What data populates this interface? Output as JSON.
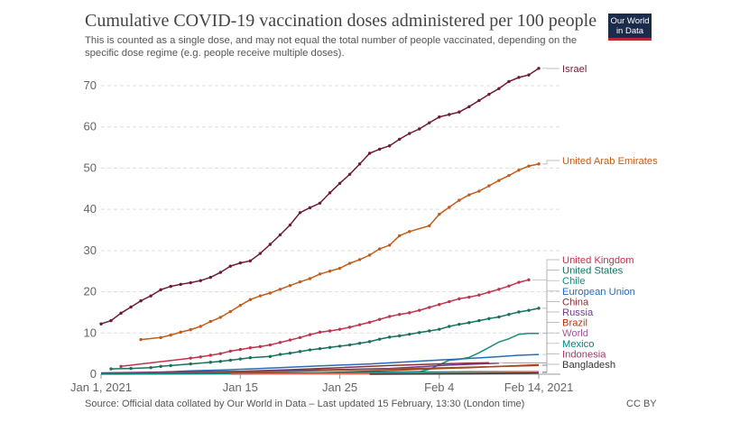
{
  "header": {
    "title": "Cumulative COVID-19 vaccination doses administered per 100 people",
    "subtitle": "This is counted as a single dose, and may not equal the total number of people vaccinated, depending on the specific dose regime (e.g. people receive multiple doses).",
    "logo_line1": "Our World",
    "logo_line2": "in Data"
  },
  "footer": {
    "source": "Source: Official data collated by Our World in Data – Last updated 15 February, 13:30 (London time)",
    "license": "CC BY"
  },
  "chart_data": {
    "type": "line",
    "title": "Cumulative COVID-19 vaccination doses administered per 100 people",
    "x_unit": "date",
    "x_range": [
      "2021-01-01",
      "2021-02-14"
    ],
    "x_ticks": [
      "Jan 1, 2021",
      "Jan 15",
      "Jan 25",
      "Feb 4",
      "Feb 14, 2021"
    ],
    "x_tick_dates": [
      "2021-01-01",
      "2021-01-15",
      "2021-01-25",
      "2021-02-04",
      "2021-02-14"
    ],
    "ylim": [
      0,
      75
    ],
    "y_ticks": [
      0,
      10,
      20,
      30,
      40,
      50,
      60,
      70
    ],
    "grid": "horizontal dashed",
    "legend": "labels at line ends, right",
    "series": [
      {
        "name": "Israel",
        "color": "#6d1a36",
        "points": [
          [
            "2021-01-01",
            12.2
          ],
          [
            "2021-01-02",
            13
          ],
          [
            "2021-01-03",
            14.8
          ],
          [
            "2021-01-04",
            16.3
          ],
          [
            "2021-01-05",
            17.8
          ],
          [
            "2021-01-06",
            19
          ],
          [
            "2021-01-07",
            20.5
          ],
          [
            "2021-01-08",
            21.3
          ],
          [
            "2021-01-09",
            21.8
          ],
          [
            "2021-01-10",
            22.2
          ],
          [
            "2021-01-11",
            22.7
          ],
          [
            "2021-01-12",
            23.5
          ],
          [
            "2021-01-13",
            24.7
          ],
          [
            "2021-01-14",
            26.2
          ],
          [
            "2021-01-15",
            27
          ],
          [
            "2021-01-16",
            27.5
          ],
          [
            "2021-01-17",
            29.3
          ],
          [
            "2021-01-18",
            31.5
          ],
          [
            "2021-01-19",
            33.8
          ],
          [
            "2021-01-20",
            36.2
          ],
          [
            "2021-01-21",
            39.2
          ],
          [
            "2021-01-22",
            40.4
          ],
          [
            "2021-01-23",
            41.5
          ],
          [
            "2021-01-24",
            44
          ],
          [
            "2021-01-25",
            46.3
          ],
          [
            "2021-01-26",
            48.5
          ],
          [
            "2021-01-27",
            51
          ],
          [
            "2021-01-28",
            53.6
          ],
          [
            "2021-01-29",
            54.6
          ],
          [
            "2021-01-30",
            55.4
          ],
          [
            "2021-01-31",
            57
          ],
          [
            "2021-02-01",
            58.4
          ],
          [
            "2021-02-02",
            59.5
          ],
          [
            "2021-02-03",
            61
          ],
          [
            "2021-02-04",
            62.4
          ],
          [
            "2021-02-05",
            63
          ],
          [
            "2021-02-06",
            63.6
          ],
          [
            "2021-02-07",
            64.9
          ],
          [
            "2021-02-08",
            66.4
          ],
          [
            "2021-02-09",
            67.9
          ],
          [
            "2021-02-10",
            69.3
          ],
          [
            "2021-02-11",
            71
          ],
          [
            "2021-02-12",
            72
          ],
          [
            "2021-02-13",
            72.6
          ],
          [
            "2021-02-14",
            74.2
          ]
        ]
      },
      {
        "name": "United Arab Emirates",
        "color": "#c15d1c",
        "points": [
          [
            "2021-01-05",
            8.4
          ],
          [
            "2021-01-07",
            8.9
          ],
          [
            "2021-01-08",
            9.5
          ],
          [
            "2021-01-09",
            10.2
          ],
          [
            "2021-01-10",
            10.8
          ],
          [
            "2021-01-11",
            11.6
          ],
          [
            "2021-01-12",
            12.8
          ],
          [
            "2021-01-13",
            13.8
          ],
          [
            "2021-01-14",
            15.2
          ],
          [
            "2021-01-15",
            16.7
          ],
          [
            "2021-01-16",
            18.1
          ],
          [
            "2021-01-17",
            19
          ],
          [
            "2021-01-18",
            19.7
          ],
          [
            "2021-01-19",
            20.6
          ],
          [
            "2021-01-20",
            21.5
          ],
          [
            "2021-01-21",
            22.4
          ],
          [
            "2021-01-22",
            23.2
          ],
          [
            "2021-01-23",
            24.3
          ],
          [
            "2021-01-24",
            25
          ],
          [
            "2021-01-25",
            25.7
          ],
          [
            "2021-01-26",
            26.9
          ],
          [
            "2021-01-27",
            27.8
          ],
          [
            "2021-01-28",
            28.9
          ],
          [
            "2021-01-29",
            30.4
          ],
          [
            "2021-01-30",
            31.3
          ],
          [
            "2021-01-31",
            33.6
          ],
          [
            "2021-02-01",
            34.6
          ],
          [
            "2021-02-03",
            36
          ],
          [
            "2021-02-04",
            38.8
          ],
          [
            "2021-02-05",
            40.5
          ],
          [
            "2021-02-06",
            42.2
          ],
          [
            "2021-02-07",
            43.5
          ],
          [
            "2021-02-08",
            44.4
          ],
          [
            "2021-02-09",
            45.7
          ],
          [
            "2021-02-10",
            47
          ],
          [
            "2021-02-11",
            48.2
          ],
          [
            "2021-02-12",
            49.5
          ],
          [
            "2021-02-13",
            50.5
          ],
          [
            "2021-02-14",
            51
          ]
        ]
      },
      {
        "name": "United Kingdom",
        "color": "#c0334d",
        "points": [
          [
            "2021-01-03",
            1.9
          ],
          [
            "2021-01-10",
            3.9
          ],
          [
            "2021-01-11",
            4.2
          ],
          [
            "2021-01-12",
            4.6
          ],
          [
            "2021-01-13",
            5
          ],
          [
            "2021-01-14",
            5.6
          ],
          [
            "2021-01-15",
            6
          ],
          [
            "2021-01-16",
            6.4
          ],
          [
            "2021-01-17",
            6.7
          ],
          [
            "2021-01-18",
            7.1
          ],
          [
            "2021-01-19",
            7.7
          ],
          [
            "2021-01-20",
            8.3
          ],
          [
            "2021-01-21",
            8.9
          ],
          [
            "2021-01-22",
            9.6
          ],
          [
            "2021-01-23",
            10.2
          ],
          [
            "2021-01-24",
            10.5
          ],
          [
            "2021-01-25",
            10.9
          ],
          [
            "2021-01-26",
            11.4
          ],
          [
            "2021-01-27",
            12
          ],
          [
            "2021-01-28",
            12.6
          ],
          [
            "2021-01-29",
            13.3
          ],
          [
            "2021-01-30",
            14
          ],
          [
            "2021-01-31",
            14.5
          ],
          [
            "2021-02-01",
            14.9
          ],
          [
            "2021-02-02",
            15.5
          ],
          [
            "2021-02-03",
            16.2
          ],
          [
            "2021-02-04",
            16.9
          ],
          [
            "2021-02-05",
            17.6
          ],
          [
            "2021-02-06",
            18.3
          ],
          [
            "2021-02-07",
            18.7
          ],
          [
            "2021-02-08",
            19.2
          ],
          [
            "2021-02-09",
            19.9
          ],
          [
            "2021-02-10",
            20.6
          ],
          [
            "2021-02-11",
            21.4
          ],
          [
            "2021-02-12",
            22.3
          ],
          [
            "2021-02-13",
            22.9
          ]
        ]
      },
      {
        "name": "United States",
        "color": "#18705e",
        "points": [
          [
            "2021-01-02",
            1.3
          ],
          [
            "2021-01-04",
            1.4
          ],
          [
            "2021-01-06",
            1.6
          ],
          [
            "2021-01-07",
            1.9
          ],
          [
            "2021-01-08",
            2.1
          ],
          [
            "2021-01-10",
            2.5
          ],
          [
            "2021-01-12",
            2.9
          ],
          [
            "2021-01-13",
            3.1
          ],
          [
            "2021-01-14",
            3.4
          ],
          [
            "2021-01-15",
            3.7
          ],
          [
            "2021-01-16",
            4
          ],
          [
            "2021-01-18",
            4.3
          ],
          [
            "2021-01-19",
            4.8
          ],
          [
            "2021-01-20",
            5.1
          ],
          [
            "2021-01-21",
            5.5
          ],
          [
            "2021-01-22",
            5.9
          ],
          [
            "2021-01-23",
            6.2
          ],
          [
            "2021-01-24",
            6.5
          ],
          [
            "2021-01-25",
            6.8
          ],
          [
            "2021-01-26",
            7.1
          ],
          [
            "2021-01-27",
            7.5
          ],
          [
            "2021-01-28",
            7.9
          ],
          [
            "2021-01-29",
            8.5
          ],
          [
            "2021-01-30",
            9
          ],
          [
            "2021-01-31",
            9.3
          ],
          [
            "2021-02-01",
            9.7
          ],
          [
            "2021-02-02",
            10.1
          ],
          [
            "2021-02-03",
            10.5
          ],
          [
            "2021-02-04",
            10.9
          ],
          [
            "2021-02-05",
            11.6
          ],
          [
            "2021-02-06",
            12.1
          ],
          [
            "2021-02-07",
            12.5
          ],
          [
            "2021-02-08",
            13
          ],
          [
            "2021-02-09",
            13.5
          ],
          [
            "2021-02-10",
            13.9
          ],
          [
            "2021-02-11",
            14.5
          ],
          [
            "2021-02-12",
            15.1
          ],
          [
            "2021-02-13",
            15.5
          ],
          [
            "2021-02-14",
            16
          ]
        ]
      },
      {
        "name": "Chile",
        "color": "#1c8a77",
        "points": [
          [
            "2021-01-01",
            0.1
          ],
          [
            "2021-01-15",
            0.3
          ],
          [
            "2021-01-25",
            0.4
          ],
          [
            "2021-01-30",
            0.5
          ],
          [
            "2021-02-02",
            0.6
          ],
          [
            "2021-02-03",
            1.2
          ],
          [
            "2021-02-04",
            2.3
          ],
          [
            "2021-02-05",
            3.4
          ],
          [
            "2021-02-06",
            3.6
          ],
          [
            "2021-02-07",
            4.1
          ],
          [
            "2021-02-08",
            5.2
          ],
          [
            "2021-02-09",
            6.5
          ],
          [
            "2021-02-10",
            7.8
          ],
          [
            "2021-02-11",
            8.6
          ],
          [
            "2021-02-12",
            9.7
          ],
          [
            "2021-02-13",
            9.9
          ],
          [
            "2021-02-14",
            9.9
          ]
        ]
      },
      {
        "name": "European Union",
        "color": "#286bbb",
        "points": [
          [
            "2021-01-01",
            0.1
          ],
          [
            "2021-01-04",
            0.25
          ],
          [
            "2021-01-07",
            0.5
          ],
          [
            "2021-01-10",
            0.8
          ],
          [
            "2021-01-13",
            1
          ],
          [
            "2021-01-16",
            1.3
          ],
          [
            "2021-01-19",
            1.6
          ],
          [
            "2021-01-22",
            1.9
          ],
          [
            "2021-01-25",
            2.2
          ],
          [
            "2021-01-28",
            2.5
          ],
          [
            "2021-01-31",
            2.9
          ],
          [
            "2021-02-03",
            3.3
          ],
          [
            "2021-02-06",
            3.7
          ],
          [
            "2021-02-09",
            4.1
          ],
          [
            "2021-02-12",
            4.6
          ],
          [
            "2021-02-14",
            4.8
          ]
        ]
      },
      {
        "name": "China",
        "color": "#883039",
        "points": [
          [
            "2021-01-01",
            0.3
          ],
          [
            "2021-01-09",
            0.6
          ],
          [
            "2021-01-15",
            0.7
          ],
          [
            "2021-01-20",
            1.1
          ],
          [
            "2021-01-25",
            1.6
          ],
          [
            "2021-01-30",
            2.1
          ],
          [
            "2021-02-04",
            2.5
          ],
          [
            "2021-02-09",
            2.8
          ]
        ]
      },
      {
        "name": "Russia",
        "color": "#6b3d8e",
        "points": [
          [
            "2021-01-01",
            0.3
          ],
          [
            "2021-01-10",
            0.5
          ],
          [
            "2021-01-20",
            0.9
          ],
          [
            "2021-01-30",
            1.4
          ],
          [
            "2021-02-05",
            2.2
          ],
          [
            "2021-02-10",
            2.7
          ]
        ]
      },
      {
        "name": "Brazil",
        "color": "#b13507",
        "points": [
          [
            "2021-01-18",
            0.1
          ],
          [
            "2021-01-22",
            0.3
          ],
          [
            "2021-01-26",
            0.6
          ],
          [
            "2021-01-30",
            0.9
          ],
          [
            "2021-02-03",
            1.3
          ],
          [
            "2021-02-07",
            1.6
          ],
          [
            "2021-02-11",
            2
          ],
          [
            "2021-02-14",
            2.3
          ]
        ]
      },
      {
        "name": "World",
        "color": "#9a5129",
        "points": [
          [
            "2021-01-01",
            0.1
          ],
          [
            "2021-01-08",
            0.3
          ],
          [
            "2021-01-15",
            0.5
          ],
          [
            "2021-01-22",
            0.8
          ],
          [
            "2021-01-29",
            1.2
          ],
          [
            "2021-02-05",
            1.6
          ],
          [
            "2021-02-14",
            2.1
          ]
        ]
      },
      {
        "name": "Mexico",
        "color": "#00847e",
        "points": [
          [
            "2021-01-01",
            0.03
          ],
          [
            "2021-01-10",
            0.1
          ],
          [
            "2021-01-20",
            0.3
          ],
          [
            "2021-01-30",
            0.5
          ],
          [
            "2021-02-07",
            0.6
          ],
          [
            "2021-02-14",
            0.6
          ]
        ]
      },
      {
        "name": "Indonesia",
        "color": "#e56e5a",
        "points": [
          [
            "2021-01-14",
            0.01
          ],
          [
            "2021-01-22",
            0.1
          ],
          [
            "2021-01-30",
            0.2
          ],
          [
            "2021-02-07",
            0.4
          ],
          [
            "2021-02-14",
            0.5
          ]
        ]
      },
      {
        "name": "Bangladesh",
        "color": "#333333",
        "points": [
          [
            "2021-01-28",
            0.01
          ],
          [
            "2021-02-07",
            0.1
          ],
          [
            "2021-02-10",
            0.2
          ],
          [
            "2021-02-14",
            0.3
          ]
        ]
      }
    ],
    "label_colors": {
      "Israel": "#6d1a36",
      "United Arab Emirates": "#c15d1c",
      "United Kingdom": "#c0334d",
      "United States": "#18705e",
      "Chile": "#1c8a77",
      "European Union": "#286bbb",
      "China": "#883039",
      "Russia": "#6b3d8e",
      "Brazil": "#b13507",
      "World": "#a2559c",
      "Mexico": "#00847e",
      "Indonesia": "#b72c6b",
      "Bangladesh": "#333333"
    }
  }
}
